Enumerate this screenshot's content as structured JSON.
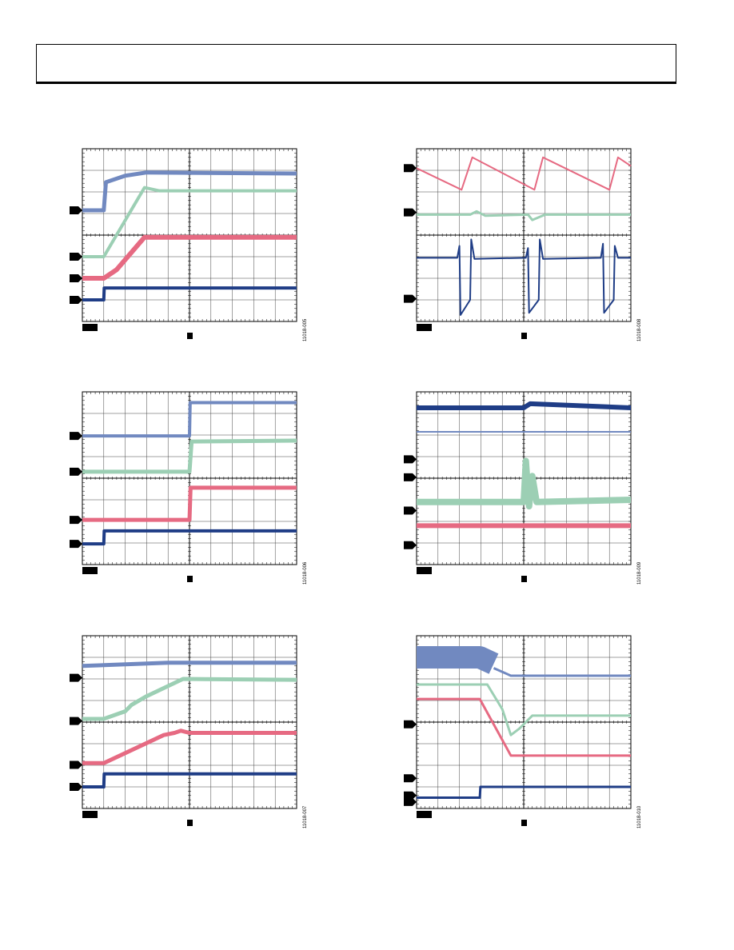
{
  "figures": [
    {
      "id": "11018-005"
    },
    {
      "id": "11018-008"
    },
    {
      "id": "11018-006"
    },
    {
      "id": "11018-009"
    },
    {
      "id": "11018-007"
    },
    {
      "id": "11018-010"
    }
  ]
}
